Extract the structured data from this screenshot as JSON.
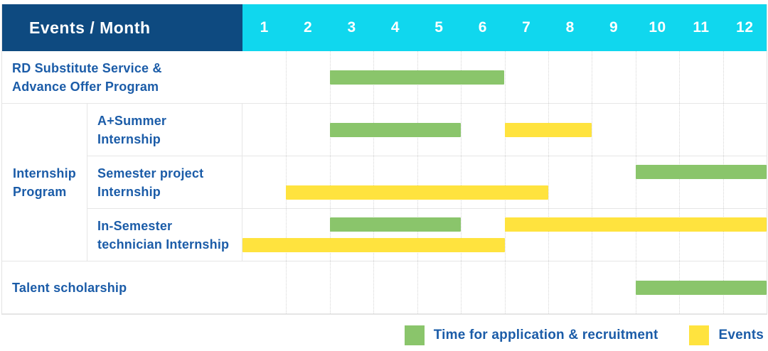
{
  "header": {
    "corner": "Events / Month",
    "months": [
      "1",
      "2",
      "3",
      "4",
      "5",
      "6",
      "7",
      "8",
      "9",
      "10",
      "11",
      "12"
    ]
  },
  "colors": {
    "header_bg": "#0e4a80",
    "months_bg": "#10d7ee",
    "application": "#8ac56b",
    "event": "#ffe33e",
    "label_text": "#1b5ca8",
    "grid_line": "#d6d6d6"
  },
  "chart_data": {
    "type": "bar",
    "subtype": "gantt-schedule",
    "title": "Events / Month",
    "x_axis": {
      "label": "Month",
      "ticks": [
        "1",
        "2",
        "3",
        "4",
        "5",
        "6",
        "7",
        "8",
        "9",
        "10",
        "11",
        "12"
      ],
      "range": [
        1,
        12
      ]
    },
    "legend_position": "bottom-right",
    "grid": "dotted-vertical-month-lines",
    "group": {
      "label": "Internship\nProgram",
      "member_row_indexes": [
        1,
        2,
        3
      ]
    },
    "rows": [
      {
        "label": "RD Substitute Service &\nAdvance Offer Program",
        "bars": [
          {
            "series": "application",
            "start_month": 3,
            "end_month": 6,
            "lane": "center"
          }
        ]
      },
      {
        "label": "A+Summer\nInternship",
        "bars": [
          {
            "series": "application",
            "start_month": 3,
            "end_month": 5,
            "lane": "center"
          },
          {
            "series": "event",
            "start_month": 7,
            "end_month": 8,
            "lane": "center"
          }
        ]
      },
      {
        "label": "Semester project\nInternship",
        "bars": [
          {
            "series": "application",
            "start_month": 10,
            "end_month": 12,
            "lane": "top"
          },
          {
            "series": "event",
            "start_month": 2,
            "end_month": 7,
            "lane": "bottom"
          }
        ]
      },
      {
        "label": "In-Semester\ntechnician Internship",
        "bars": [
          {
            "series": "application",
            "start_month": 3,
            "end_month": 5,
            "lane": "top"
          },
          {
            "series": "event",
            "start_month": 7,
            "end_month": 12,
            "lane": "top"
          },
          {
            "series": "event",
            "start_month": 1,
            "end_month": 6,
            "lane": "bottom"
          }
        ]
      },
      {
        "label": "Talent scholarship",
        "bars": [
          {
            "series": "application",
            "start_month": 10,
            "end_month": 12,
            "lane": "center"
          }
        ]
      }
    ]
  },
  "legend": {
    "items": [
      {
        "series": "application",
        "label": "Time for application & recruitment"
      },
      {
        "series": "event",
        "label": "Events"
      }
    ]
  }
}
